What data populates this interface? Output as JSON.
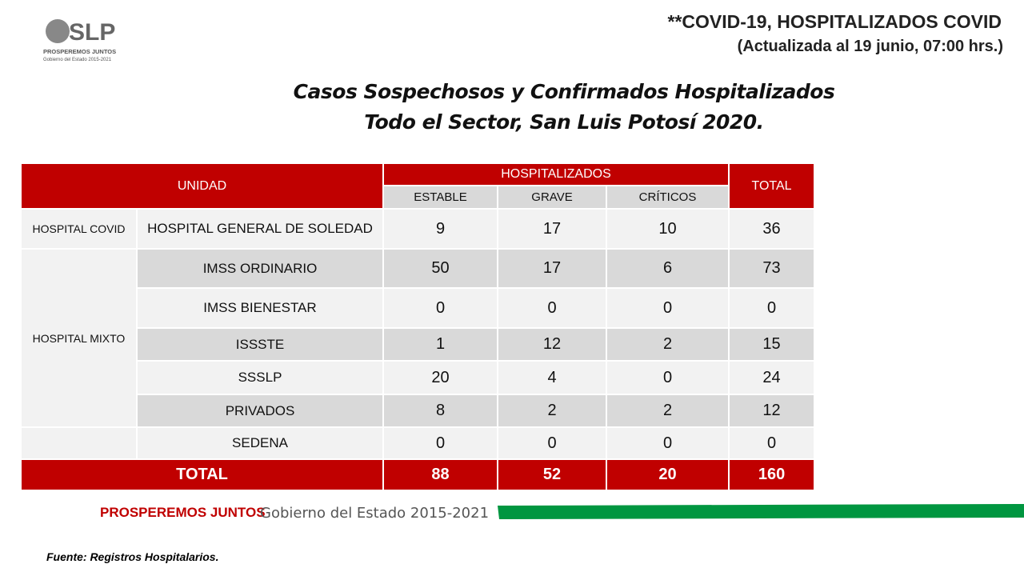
{
  "logo": {
    "mark": "SLP",
    "slogan": "PROSPEREMOS JUNTOS",
    "government": "Gobierno del Estado 2015-2021"
  },
  "header": {
    "title": "**COVID-19, HOSPITALIZADOS COVID",
    "subtitle": "(Actualizada al 19 junio, 07:00 hrs.)"
  },
  "heading": {
    "line1": "Casos Sospechosos y Confirmados Hospitalizados",
    "line2": "Todo el Sector, San Luis Potosí 2020."
  },
  "table": {
    "unit_header": "UNIDAD",
    "group_header": "HOSPITALIZADOS",
    "columns": [
      "ESTABLE",
      "GRAVE",
      "CRÍTICOS"
    ],
    "total_header": "TOTAL",
    "groups": [
      {
        "label": "HOSPITAL COVID",
        "rows": [
          {
            "unit": "HOSPITAL GENERAL DE SOLEDAD",
            "values": [
              9,
              17,
              10,
              36
            ]
          }
        ]
      },
      {
        "label": "HOSPITAL MIXTO",
        "rows": [
          {
            "unit": "IMSS ORDINARIO",
            "values": [
              50,
              17,
              6,
              73
            ]
          },
          {
            "unit": "IMSS BIENESTAR",
            "values": [
              0,
              0,
              0,
              0
            ]
          },
          {
            "unit": "ISSSTE",
            "values": [
              1,
              12,
              2,
              15
            ]
          },
          {
            "unit": "SSSLP",
            "values": [
              20,
              4,
              0,
              24
            ]
          },
          {
            "unit": "PRIVADOS",
            "values": [
              8,
              2,
              2,
              12
            ]
          }
        ]
      },
      {
        "rows": [
          {
            "unit": "SEDENA",
            "values": [
              0,
              0,
              0,
              0
            ]
          }
        ]
      }
    ],
    "total_row": {
      "label": "TOTAL",
      "values": [
        88,
        52,
        20,
        160
      ]
    }
  },
  "footer": {
    "slogan": "PROSPEREMOS JUNTOS",
    "government": "Gobierno del Estado 2015-2021"
  },
  "source": "Fuente: Registros Hospitalarios."
}
